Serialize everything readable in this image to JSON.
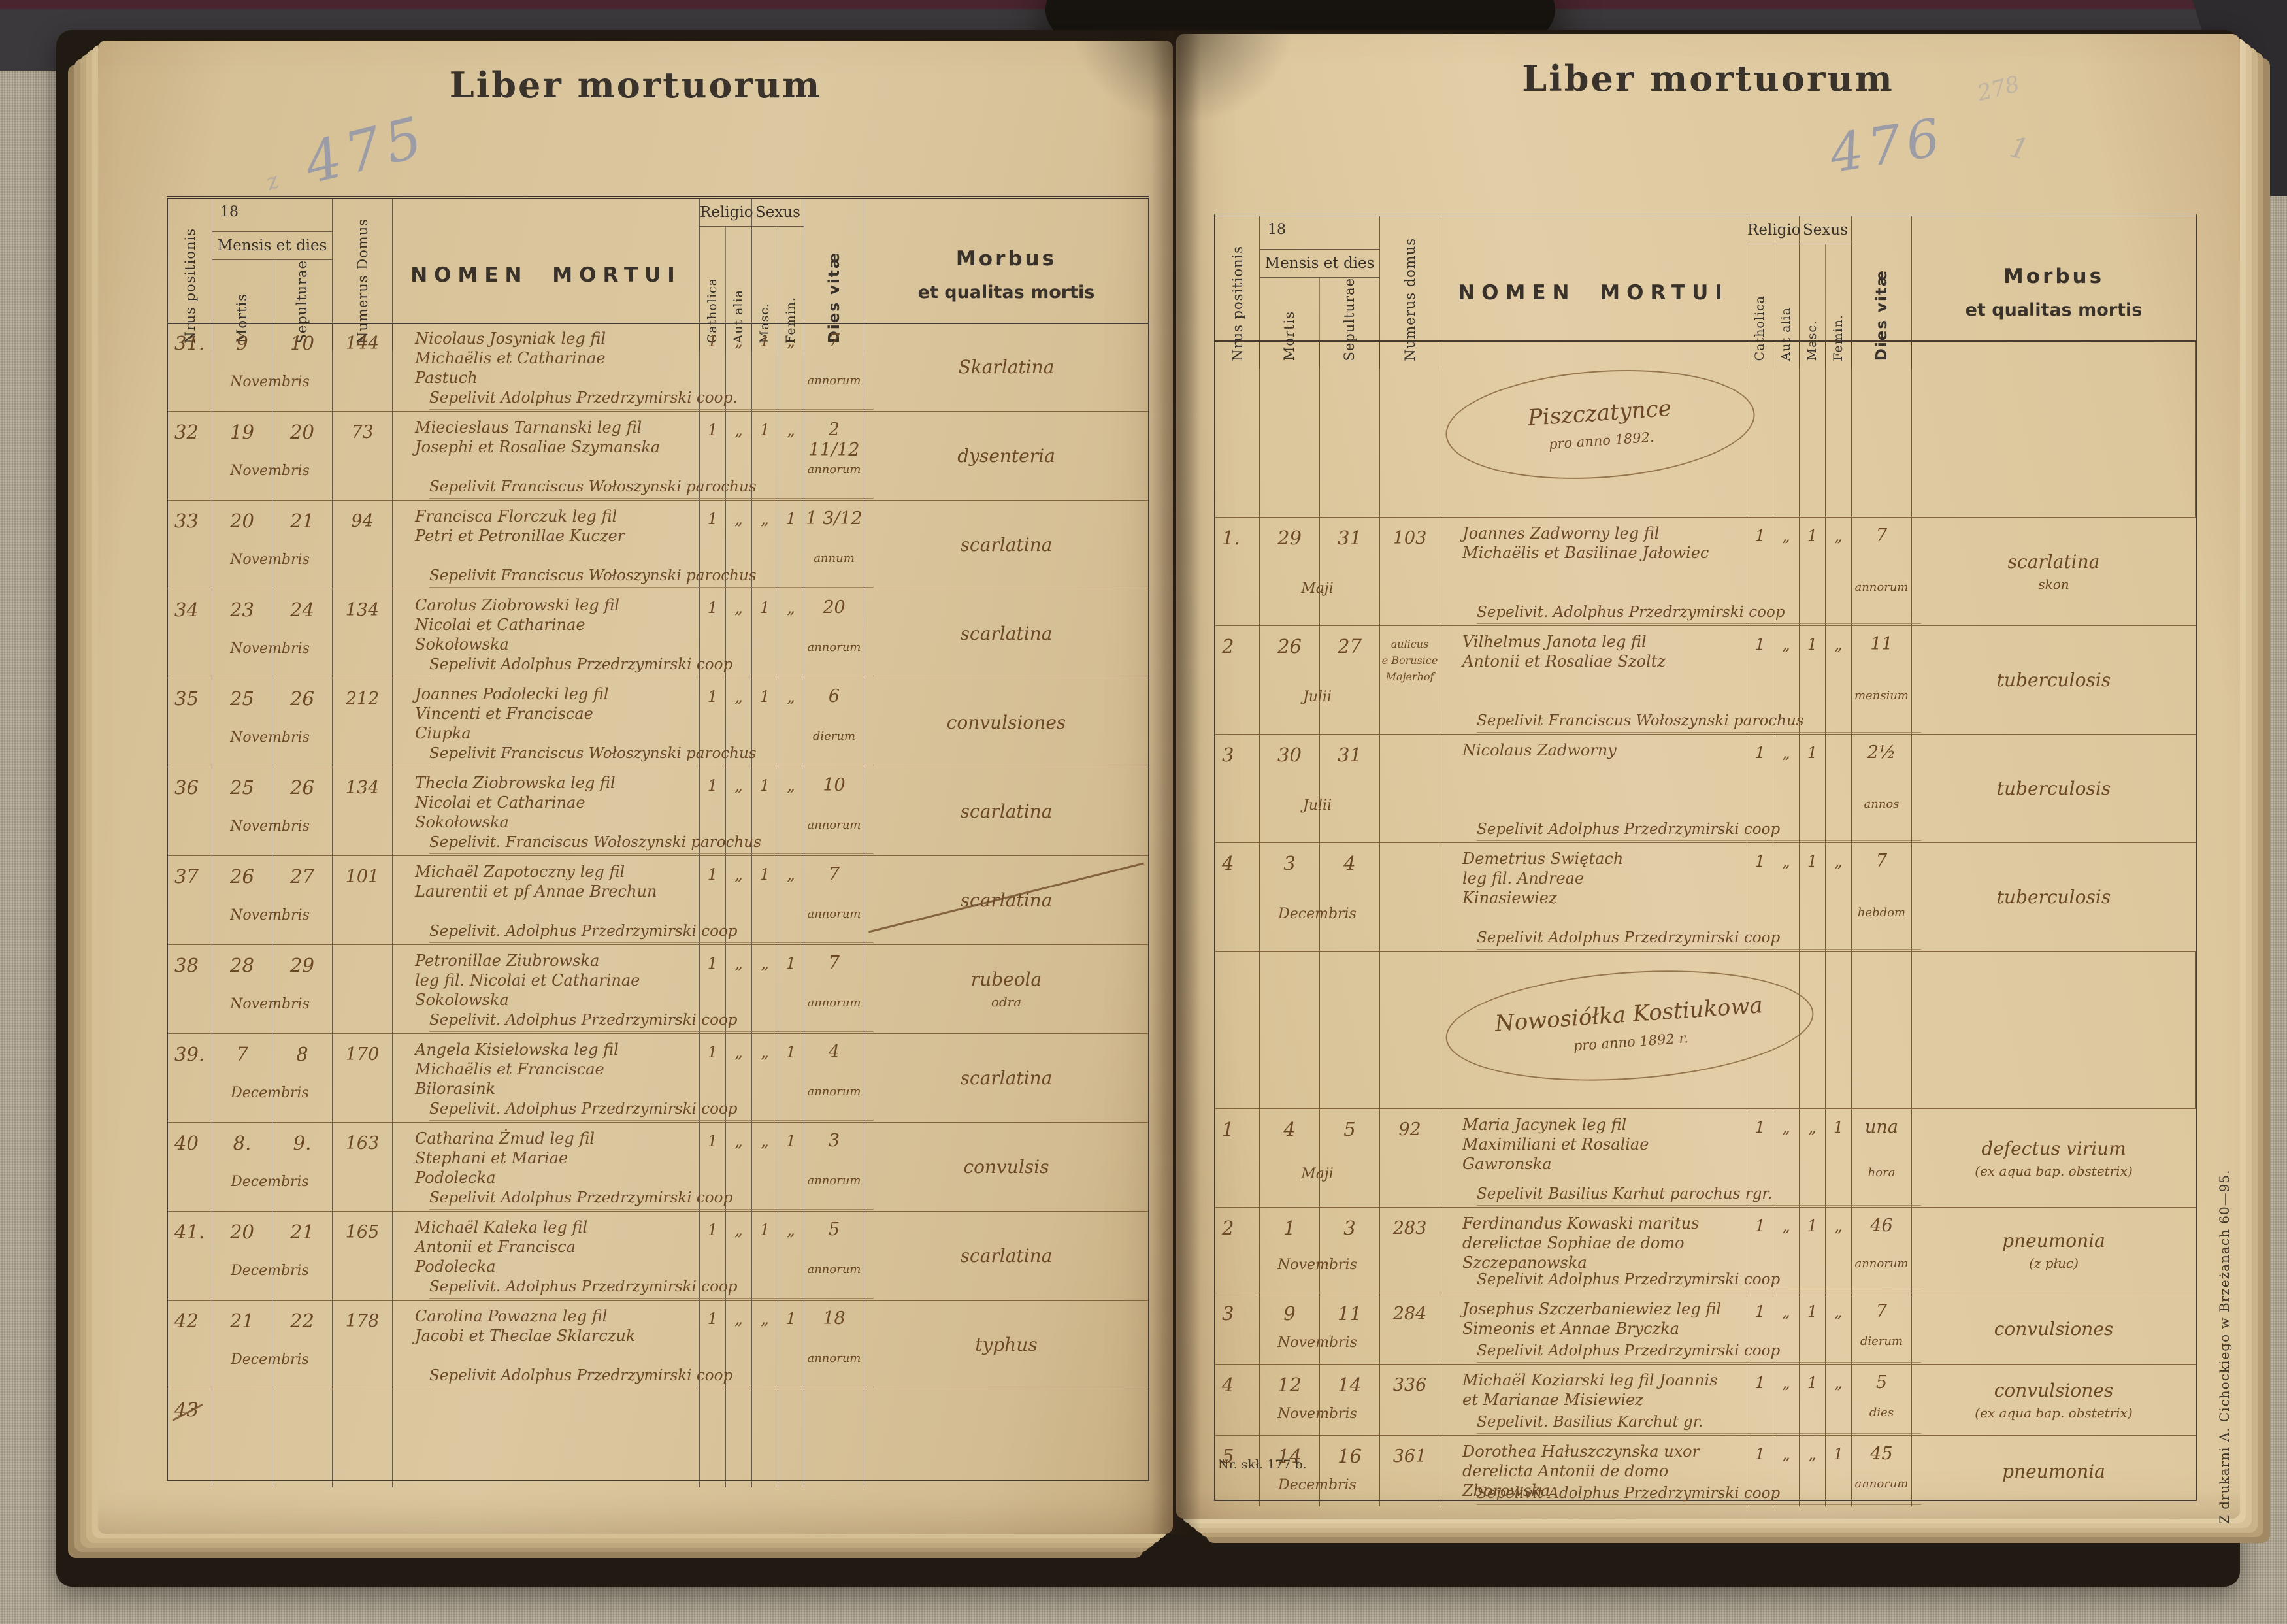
{
  "title": "Liber mortuorum",
  "labels": {
    "year_prefix": "18",
    "mensis_et_dies": "Mensis et dies",
    "nrus": "Nrus positionis",
    "mortis": "Mortis",
    "sepulturae": "Sepulturae",
    "numerus_domus_left": "Numerus Domus",
    "numerus_domus_right": "Numerus domus",
    "nomen": "NOMEN MORTUI",
    "religio": "Religio",
    "sexus": "Sexus",
    "catholica": "Catholica",
    "aut_alia": "Aut alia",
    "masc": "Masc.",
    "femin": "Femin.",
    "dies_vitae": "Dies vitæ",
    "morbus_line1": "Morbus",
    "morbus_line2": "et qualitas mortis"
  },
  "pencil": {
    "left_prefix": "z",
    "left_page_number": "475",
    "right_page_number": "476",
    "corner_number": "278",
    "tick": "1"
  },
  "prints": {
    "bottom_left": "Nr. skł. 177 b.",
    "side_vertical": "Z drukarni A. Cichockiego w Brzeżanach 60—95."
  },
  "colors": {
    "paper": "#dcc8a0",
    "ink_print": "#39322a",
    "ink_hand": "#6b4828",
    "pencil": "#9b9ca6",
    "fabric": "#a89f8d",
    "cover": "#211a12"
  },
  "pages": {
    "left": {
      "rows": [
        {
          "num": "31.",
          "death": "9",
          "burial": "10",
          "month": "Novembris",
          "house": "144",
          "name": [
            "Nicolaus Josyniak leg fil",
            "Michaëlis et Catharinae",
            "Pastuch"
          ],
          "sepelivit": "Sepelivit Adolphus Przedrzymirski coop.",
          "marks": [
            "1",
            "„",
            "1",
            "„"
          ],
          "age": "7",
          "age_unit": "annorum",
          "morbus": [
            "Skarlatina"
          ]
        },
        {
          "num": "32",
          "death": "19",
          "burial": "20",
          "month": "Novembris",
          "house": "73",
          "name": [
            "Miecieslaus Tarnanski leg fil",
            "Josephi et Rosaliae Szymanska"
          ],
          "sepelivit": "Sepelivit Franciscus Wołoszynski parochus",
          "marks": [
            "1",
            "„",
            "1",
            "„"
          ],
          "age": "2 11/12",
          "age_unit": "annorum",
          "morbus": [
            "dysenteria"
          ]
        },
        {
          "num": "33",
          "death": "20",
          "burial": "21",
          "month": "Novembris",
          "house": "94",
          "name": [
            "Francisca Florczuk leg fil",
            "Petri et Petronillae Kuczer"
          ],
          "sepelivit": "Sepelivit Franciscus Wołoszynski parochus",
          "marks": [
            "1",
            "„",
            "„",
            "1"
          ],
          "age": "1 3/12",
          "age_unit": "annum",
          "morbus": [
            "scarlatina"
          ]
        },
        {
          "num": "34",
          "death": "23",
          "burial": "24",
          "month": "Novembris",
          "house": "134",
          "name": [
            "Carolus Ziobrowski leg fil",
            "Nicolai et Catharinae",
            "Sokołowska"
          ],
          "sepelivit": "Sepelivit Adolphus Przedrzymirski coop",
          "marks": [
            "1",
            "„",
            "1",
            "„"
          ],
          "age": "20",
          "age_unit": "annorum",
          "morbus": [
            "scarlatina"
          ]
        },
        {
          "num": "35",
          "death": "25",
          "burial": "26",
          "month": "Novembris",
          "house": "212",
          "name": [
            "Joannes Podolecki leg fil",
            "Vincenti et Franciscae",
            "Ciupka"
          ],
          "sepelivit": "Sepelivit Franciscus Wołoszynski parochus",
          "marks": [
            "1",
            "„",
            "1",
            "„"
          ],
          "age": "6",
          "age_unit": "dierum",
          "morbus": [
            "convulsiones"
          ]
        },
        {
          "num": "36",
          "death": "25",
          "burial": "26",
          "month": "Novembris",
          "house": "134",
          "name": [
            "Thecla Ziobrowska leg fil",
            "Nicolai et Catharinae",
            "Sokołowska"
          ],
          "sepelivit": "Sepelivit. Franciscus Wołoszynski parochus",
          "marks": [
            "1",
            "„",
            "1",
            "„"
          ],
          "age": "10",
          "age_unit": "annorum",
          "morbus": [
            "scarlatina"
          ]
        },
        {
          "num": "37",
          "death": "26",
          "burial": "27",
          "month": "Novembris",
          "house": "101",
          "name": [
            "Michaël Zapotoczny leg fil",
            "Laurentii et pf Annae Brechun"
          ],
          "sepelivit": "Sepelivit. Adolphus Przedrzymirski coop",
          "marks": [
            "1",
            "„",
            "1",
            "„"
          ],
          "age": "7",
          "age_unit": "annorum",
          "morbus": [
            "scarlatina"
          ],
          "morbus_struck": true
        },
        {
          "num": "38",
          "death": "28",
          "burial": "29",
          "month": "Novembris",
          "house": "",
          "name": [
            "Petronillae Ziubrowska",
            "leg fil. Nicolai et Catharinae",
            "Sokolowska"
          ],
          "sepelivit": "Sepelivit. Adolphus Przedrzymirski coop",
          "marks": [
            "1",
            "„",
            "„",
            "1"
          ],
          "age": "7",
          "age_unit": "annorum",
          "morbus": [
            "rubeola",
            "odra"
          ]
        },
        {
          "num": "39.",
          "death": "7",
          "burial": "8",
          "month": "Decembris",
          "house": "170",
          "name": [
            "Angela Kisielowska leg fil",
            "Michaëlis et Franciscae",
            "Bilorasink"
          ],
          "sepelivit": "Sepelivit. Adolphus Przedrzymirski coop",
          "marks": [
            "1",
            "„",
            "„",
            "1"
          ],
          "age": "4",
          "age_unit": "annorum",
          "morbus": [
            "scarlatina"
          ]
        },
        {
          "num": "40",
          "death": "8.",
          "burial": "9.",
          "month": "Decembris",
          "house": "163",
          "name": [
            "Catharina Żmud leg fil",
            "Stephani et Mariae",
            "Podolecka"
          ],
          "sepelivit": "Sepelivit Adolphus Przedrzymirski coop",
          "marks": [
            "1",
            "„",
            "„",
            "1"
          ],
          "age": "3",
          "age_unit": "annorum",
          "morbus": [
            "convulsis"
          ]
        },
        {
          "num": "41.",
          "death": "20",
          "burial": "21",
          "month": "Decembris",
          "house": "165",
          "name": [
            "Michaël Kaleka leg fil",
            "Antonii et Francisca",
            "Podolecka"
          ],
          "sepelivit": "Sepelivit. Adolphus Przedrzymirski coop",
          "marks": [
            "1",
            "„",
            "1",
            "„"
          ],
          "age": "5",
          "age_unit": "annorum",
          "morbus": [
            "scarlatina"
          ]
        },
        {
          "num": "42",
          "death": "21",
          "burial": "22",
          "month": "Decembris",
          "house": "178",
          "name": [
            "Carolina Powazna leg fil",
            "Jacobi et Theclae Sklarczuk"
          ],
          "sepelivit": "Sepelivit Adolphus Przedrzymirski coop",
          "marks": [
            "1",
            "„",
            "„",
            "1"
          ],
          "age": "18",
          "age_unit": "annorum",
          "morbus": [
            "typhus"
          ]
        },
        {
          "num": "43",
          "num_struck": true,
          "death": "",
          "burial": "",
          "month": "",
          "house": "",
          "name": [],
          "sepelivit": "",
          "marks": [
            "",
            "",
            "",
            ""
          ],
          "age": "",
          "age_unit": "",
          "morbus": []
        }
      ]
    },
    "right": {
      "blocks": [
        {
          "type": "oval",
          "name": "Piszczatynce",
          "anno": "pro anno 1892."
        },
        {
          "num": "1.",
          "death": "29",
          "burial": "31",
          "month": "Maji",
          "house": "103",
          "name": [
            "Joannes Zadworny leg fil",
            "Michaëlis et Basilinae Jałowiec"
          ],
          "sepelivit": "Sepelivit. Adolphus Przedrzymirski coop",
          "marks": [
            "1",
            "„",
            "1",
            "„"
          ],
          "age": "7",
          "age_unit": "annorum",
          "morbus": [
            "scarlatina",
            "skon"
          ]
        },
        {
          "num": "2",
          "death": "26",
          "burial": "27",
          "month": "Julii",
          "house": [
            "aulicus",
            "e Borusice",
            "Majerhof"
          ],
          "name": [
            "Vilhelmus Janota leg fil",
            "Antonii et Rosaliae Szoltz"
          ],
          "sepelivit": "Sepelivit Franciscus Wołoszynski parochus",
          "marks": [
            "1",
            "„",
            "1",
            "„"
          ],
          "age": "11",
          "age_unit": "mensium",
          "morbus": [
            "tuberculosis"
          ]
        },
        {
          "num": "3",
          "death": "30",
          "burial": "31",
          "month": "Julii",
          "house": "",
          "name": [
            "Nicolaus Zadworny"
          ],
          "sepelivit": "Sepelivit Adolphus Przedrzymirski coop",
          "marks": [
            "1",
            "„",
            "1",
            ""
          ],
          "age": "2½",
          "age_unit": "annos",
          "morbus": [
            "tuberculosis"
          ]
        },
        {
          "num": "4",
          "death": "3",
          "burial": "4",
          "month": "Decembris",
          "house": "",
          "name": [
            "Demetrius Swiętach",
            "leg fil. Andreae",
            "Kinasiewiez"
          ],
          "sepelivit": "Sepelivit Adolphus Przedrzymirski coop",
          "marks": [
            "1",
            "„",
            "1",
            "„"
          ],
          "age": "7",
          "age_unit": "hebdom",
          "morbus": [
            "tuberculosis"
          ]
        },
        {
          "type": "oval",
          "wide": true,
          "name": "Nowosiółka Kostiukowa",
          "anno": "pro anno 1892 r."
        },
        {
          "num": "1",
          "death": "4",
          "burial": "5",
          "month": "Maji",
          "house": "92",
          "name": [
            "Maria Jacynek leg fil",
            "Maximiliani et Rosaliae",
            "Gawronska"
          ],
          "sepelivit": "Sepelivit Basilius Karhut parochus rgr.",
          "marks": [
            "1",
            "„",
            "„",
            "1"
          ],
          "age": "una",
          "age_unit": "hora",
          "morbus": [
            "defectus virium",
            "(ex aqua bap. obstetrix)"
          ]
        },
        {
          "num": "2",
          "death": "1",
          "burial": "3",
          "month": "Novembris",
          "house": "283",
          "name": [
            "Ferdinandus Kowaski maritus",
            "derelictae Sophiae de domo",
            "Szczepanowska"
          ],
          "sepelivit": "Sepelivit Adolphus Przedrzymirski coop",
          "marks": [
            "1",
            "„",
            "1",
            "„"
          ],
          "age": "46",
          "age_unit": "annorum",
          "morbus": [
            "pneumonia",
            "(z płuc)"
          ]
        },
        {
          "num": "3",
          "death": "9",
          "burial": "11",
          "month": "Novembris",
          "house": "284",
          "name": [
            "Josephus Szczerbaniewiez leg fil",
            "Simeonis et Annae Bryczka"
          ],
          "sepelivit": "Sepelivit Adolphus Przedrzymirski coop",
          "marks": [
            "1",
            "„",
            "1",
            "„"
          ],
          "age": "7",
          "age_unit": "dierum",
          "morbus": [
            "convulsiones"
          ]
        },
        {
          "num": "4",
          "death": "12",
          "burial": "14",
          "month": "Novembris",
          "house": "336",
          "name": [
            "Michaël Koziarski leg fil Joannis",
            "et Marianae Misiewiez"
          ],
          "sepelivit": "Sepelivit. Basilius Karchut gr.",
          "marks": [
            "1",
            "„",
            "1",
            "„"
          ],
          "age": "5",
          "age_unit": "dies",
          "morbus": [
            "convulsiones",
            "(ex aqua bap. obstetrix)"
          ]
        },
        {
          "num": "5",
          "death": "14",
          "burial": "16",
          "month": "Decembris",
          "house": "361",
          "name": [
            "Dorothea Hałuszczynska uxor",
            "derelicta Antonii de domo Zborowska"
          ],
          "sepelivit": "Sepelivit Adolphus Przedrzymirski coop",
          "marks": [
            "1",
            "„",
            "„",
            "1"
          ],
          "age": "45",
          "age_unit": "annorum",
          "morbus": [
            "pneumonia"
          ]
        }
      ]
    }
  }
}
